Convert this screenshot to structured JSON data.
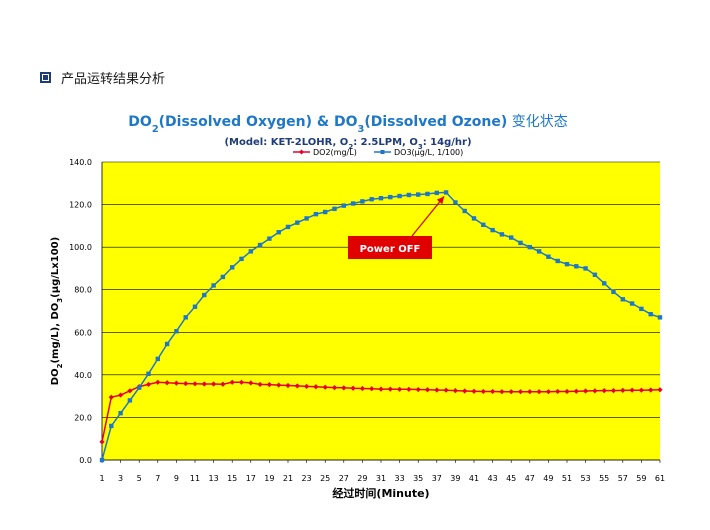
{
  "header": {
    "section_title": "产品运转结果分析"
  },
  "chart_data": {
    "type": "line",
    "title": {
      "pre": "DO",
      "sub1": "2",
      "mid": "(Dissolved Oxygen) & DO",
      "sub2": "3",
      "post": "(Dissolved Ozone)",
      "suffix": " 变化状态"
    },
    "subtitle": {
      "pre": "(Model: KET-2LOHR, O",
      "sub1": "2",
      "mid": ": 2.5LPM, O",
      "sub2": "3",
      "post": ": 14g/hr)"
    },
    "xlabel": "经过时间(Minute)",
    "ylabel": {
      "a": "DO",
      "a_sub": "2",
      "b": "(mg/L), DO",
      "b_sub": "3",
      "c": "(μg/Lx100)"
    },
    "ylim": [
      0,
      140
    ],
    "yticks": [
      "0.0",
      "20.0",
      "40.0",
      "60.0",
      "80.0",
      "100.0",
      "120.0",
      "140.0"
    ],
    "xticks": [
      "1",
      "3",
      "5",
      "7",
      "9",
      "11",
      "13",
      "15",
      "17",
      "19",
      "21",
      "23",
      "25",
      "27",
      "29",
      "31",
      "33",
      "35",
      "37",
      "39",
      "41",
      "43",
      "45",
      "47",
      "49",
      "51",
      "53",
      "55",
      "57",
      "59",
      "61"
    ],
    "grid": "horizontal",
    "legend_position": "top",
    "background": "#ffff00",
    "series": [
      {
        "name": "DO2(mg/L)",
        "color": "#e8002d",
        "marker": "diamond",
        "x": [
          1,
          2,
          3,
          4,
          5,
          6,
          7,
          8,
          9,
          10,
          11,
          12,
          13,
          14,
          15,
          16,
          17,
          18,
          19,
          20,
          21,
          22,
          23,
          24,
          25,
          26,
          27,
          28,
          29,
          30,
          31,
          32,
          33,
          34,
          35,
          36,
          37,
          38,
          39,
          40,
          41,
          42,
          43,
          44,
          45,
          46,
          47,
          48,
          49,
          50,
          51,
          52,
          53,
          54,
          55,
          56,
          57,
          58,
          59,
          60,
          61
        ],
        "values": [
          8.5,
          29.5,
          30.5,
          32.5,
          34.5,
          35.5,
          36.5,
          36.3,
          36.1,
          35.9,
          35.8,
          35.7,
          35.7,
          35.6,
          36.5,
          36.5,
          36.2,
          35.5,
          35.4,
          35.2,
          35.0,
          34.8,
          34.6,
          34.4,
          34.2,
          34.0,
          33.9,
          33.7,
          33.6,
          33.5,
          33.3,
          33.3,
          33.2,
          33.2,
          33.1,
          33.0,
          32.9,
          32.8,
          32.6,
          32.4,
          32.3,
          32.2,
          32.2,
          32.1,
          32.1,
          32.1,
          32.1,
          32.1,
          32.1,
          32.2,
          32.2,
          32.3,
          32.4,
          32.5,
          32.6,
          32.6,
          32.7,
          32.8,
          32.8,
          32.9,
          33.0
        ]
      },
      {
        "name": "DO3(μg/L, 1/100)",
        "color": "#1e78c8",
        "marker": "square",
        "x": [
          1,
          2,
          3,
          4,
          5,
          6,
          7,
          8,
          9,
          10,
          11,
          12,
          13,
          14,
          15,
          16,
          17,
          18,
          19,
          20,
          21,
          22,
          23,
          24,
          25,
          26,
          27,
          28,
          29,
          30,
          31,
          32,
          33,
          34,
          35,
          36,
          37,
          38,
          39,
          40,
          41,
          42,
          43,
          44,
          45,
          46,
          47,
          48,
          49,
          50,
          51,
          52,
          53,
          54,
          55,
          56,
          57,
          58,
          59,
          60,
          61
        ],
        "values": [
          0.0,
          16.0,
          22.0,
          28.0,
          34.0,
          40.5,
          47.5,
          54.5,
          60.5,
          67.0,
          72.0,
          77.5,
          82.0,
          86.0,
          90.5,
          94.5,
          98.0,
          101.0,
          104.0,
          107.0,
          109.5,
          111.5,
          113.5,
          115.5,
          116.5,
          118.0,
          119.5,
          120.5,
          121.5,
          122.5,
          123.0,
          123.5,
          124.0,
          124.5,
          124.7,
          125.0,
          125.5,
          125.7,
          121.0,
          117.0,
          113.5,
          110.5,
          108.0,
          106.0,
          104.5,
          102.0,
          100.0,
          98.0,
          95.5,
          93.5,
          92.0,
          91.0,
          90.0,
          87.0,
          83.0,
          79.0,
          75.5,
          73.5,
          71.0,
          68.5,
          67.0
        ]
      }
    ],
    "annotation": {
      "label": "Power OFF",
      "target": {
        "x": 38,
        "y": 125.7
      },
      "box_color": "#e00000",
      "text_color": "#ffffff"
    }
  }
}
